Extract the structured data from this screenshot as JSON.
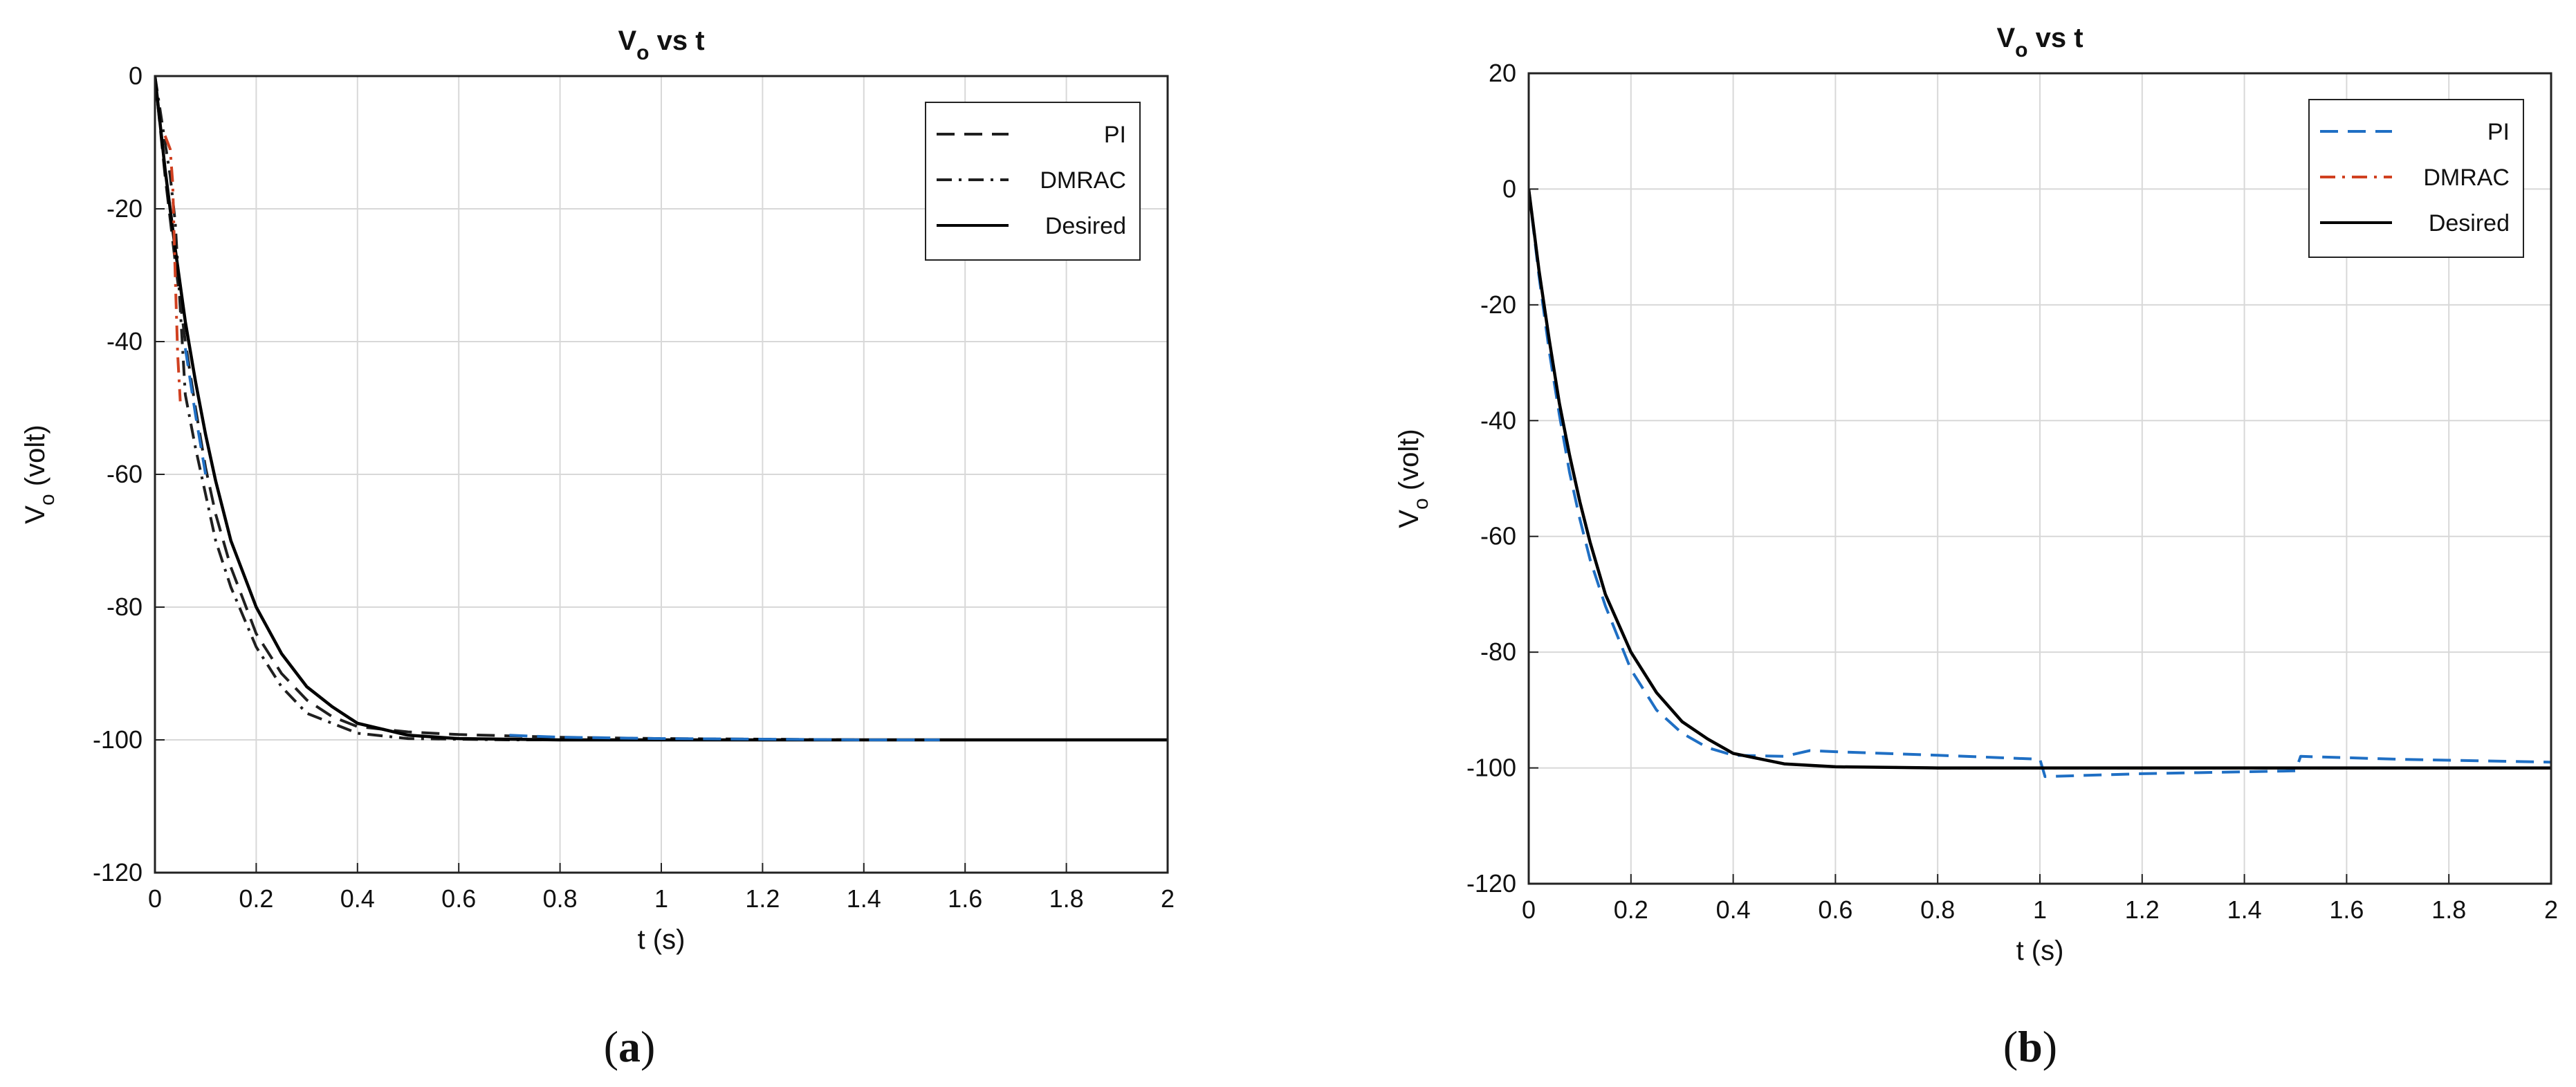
{
  "chart_data": [
    {
      "type": "line",
      "title": "V",
      "title_sub": "o",
      "title_rest": " vs t",
      "ylabel": "V",
      "ylabel_sub": "o",
      "ylabel_rest": " (volt)",
      "xlabel": "t (s)",
      "xlim": [
        0,
        2
      ],
      "ylim": [
        -120,
        0
      ],
      "xticks": [
        "0",
        "0.2",
        "0.4",
        "0.6",
        "0.8",
        "1",
        "1.2",
        "1.4",
        "1.6",
        "1.8",
        "2"
      ],
      "yticks": [
        "0",
        "-20",
        "-40",
        "-60",
        "-80",
        "-100",
        "-120"
      ],
      "grid": true,
      "legend_position": "top-right",
      "caption": "(a)",
      "series": [
        {
          "name": "PI",
          "style": "dashed",
          "color": "#1f1f1f",
          "points": [
            [
              0,
              0
            ],
            [
              0.02,
              -15
            ],
            [
              0.04,
              -28
            ],
            [
              0.06,
              -40
            ],
            [
              0.08,
              -50
            ],
            [
              0.1,
              -59
            ],
            [
              0.12,
              -66
            ],
            [
              0.15,
              -74
            ],
            [
              0.2,
              -84
            ],
            [
              0.25,
              -90
            ],
            [
              0.3,
              -94
            ],
            [
              0.35,
              -96.5
            ],
            [
              0.4,
              -98
            ],
            [
              0.5,
              -98.8
            ],
            [
              0.6,
              -99.2
            ],
            [
              0.8,
              -99.6
            ],
            [
              1.0,
              -99.8
            ],
            [
              1.2,
              -99.9
            ],
            [
              1.4,
              -100
            ],
            [
              2.0,
              -100
            ]
          ]
        },
        {
          "name": "DMRAC",
          "style": "dashdot",
          "color": "#1f1f1f",
          "points": [
            [
              0,
              0
            ],
            [
              0.01,
              -5
            ],
            [
              0.02,
              -10
            ],
            [
              0.03,
              -15
            ],
            [
              0.04,
              -22
            ],
            [
              0.05,
              -35
            ],
            [
              0.06,
              -48
            ],
            [
              0.08,
              -56
            ],
            [
              0.1,
              -63
            ],
            [
              0.12,
              -70
            ],
            [
              0.15,
              -77
            ],
            [
              0.2,
              -86
            ],
            [
              0.25,
              -92
            ],
            [
              0.3,
              -96
            ],
            [
              0.4,
              -99
            ],
            [
              0.5,
              -99.8
            ],
            [
              0.7,
              -100
            ],
            [
              2.0,
              -100
            ]
          ]
        },
        {
          "name": "Desired",
          "style": "solid",
          "color": "#000000",
          "points": [
            [
              0,
              0
            ],
            [
              0.02,
              -14
            ],
            [
              0.04,
              -26
            ],
            [
              0.06,
              -37
            ],
            [
              0.08,
              -46
            ],
            [
              0.1,
              -54
            ],
            [
              0.12,
              -61
            ],
            [
              0.15,
              -70
            ],
            [
              0.2,
              -80
            ],
            [
              0.25,
              -87
            ],
            [
              0.3,
              -92
            ],
            [
              0.35,
              -95
            ],
            [
              0.4,
              -97.5
            ],
            [
              0.5,
              -99.3
            ],
            [
              0.6,
              -99.8
            ],
            [
              0.8,
              -100
            ],
            [
              2.0,
              -100
            ]
          ]
        }
      ],
      "overlays": [
        {
          "color": "#1f6fc4",
          "style": "dashed",
          "points": [
            [
              0.06,
              -41
            ],
            [
              0.08,
              -51
            ],
            [
              0.1,
              -60
            ]
          ]
        },
        {
          "color": "#1f6fc4",
          "style": "dashed",
          "points": [
            [
              0.7,
              -99.3
            ],
            [
              0.8,
              -99.6
            ],
            [
              1.0,
              -99.8
            ],
            [
              1.2,
              -99.9
            ],
            [
              1.4,
              -100
            ],
            [
              1.55,
              -100
            ]
          ]
        },
        {
          "color": "#d04020",
          "style": "dashdot",
          "points": [
            [
              0.02,
              -9
            ],
            [
              0.03,
              -11
            ],
            [
              0.035,
              -16
            ],
            [
              0.04,
              -30
            ],
            [
              0.045,
              -42
            ],
            [
              0.05,
              -49
            ]
          ]
        }
      ]
    },
    {
      "type": "line",
      "title": "V",
      "title_sub": "o",
      "title_rest": " vs t",
      "ylabel": "V",
      "ylabel_sub": "o",
      "ylabel_rest": " (volt)",
      "xlabel": "t (s)",
      "xlim": [
        0,
        2
      ],
      "ylim": [
        -120,
        20
      ],
      "xticks": [
        "0",
        "0.2",
        "0.4",
        "0.6",
        "0.8",
        "1",
        "1.2",
        "1.4",
        "1.6",
        "1.8",
        "2"
      ],
      "yticks": [
        "20",
        "0",
        "-20",
        "-40",
        "-60",
        "-80",
        "-100",
        "-120"
      ],
      "grid": true,
      "legend_position": "top-right",
      "caption": "(b)",
      "series": [
        {
          "name": "PI",
          "style": "dashed",
          "color": "#1f6fc4",
          "points": [
            [
              0,
              0
            ],
            [
              0.02,
              -15
            ],
            [
              0.04,
              -28
            ],
            [
              0.06,
              -39
            ],
            [
              0.08,
              -49
            ],
            [
              0.1,
              -57
            ],
            [
              0.12,
              -64
            ],
            [
              0.15,
              -72
            ],
            [
              0.2,
              -83
            ],
            [
              0.25,
              -90
            ],
            [
              0.3,
              -94
            ],
            [
              0.35,
              -96.5
            ],
            [
              0.4,
              -97.8
            ],
            [
              0.5,
              -98
            ],
            [
              0.55,
              -97
            ],
            [
              0.6,
              -97.2
            ],
            [
              0.8,
              -97.8
            ],
            [
              1.0,
              -98.5
            ],
            [
              1.01,
              -101.5
            ],
            [
              1.2,
              -101
            ],
            [
              1.5,
              -100.5
            ],
            [
              1.51,
              -98
            ],
            [
              1.7,
              -98.5
            ],
            [
              2.0,
              -99
            ]
          ]
        },
        {
          "name": "DMRAC",
          "style": "dashdot",
          "color": "#d04020",
          "points": [
            [
              0,
              0
            ],
            [
              0.02,
              -14
            ],
            [
              0.04,
              -26
            ],
            [
              0.06,
              -37
            ],
            [
              0.08,
              -46
            ],
            [
              0.1,
              -54
            ],
            [
              0.12,
              -61
            ],
            [
              0.15,
              -70
            ],
            [
              0.2,
              -80
            ],
            [
              0.25,
              -87
            ],
            [
              0.3,
              -92
            ],
            [
              0.35,
              -95
            ],
            [
              0.4,
              -97.5
            ],
            [
              0.5,
              -99.3
            ],
            [
              0.6,
              -99.8
            ],
            [
              0.8,
              -100
            ],
            [
              2.0,
              -100
            ]
          ]
        },
        {
          "name": "Desired",
          "style": "solid",
          "color": "#000000",
          "points": [
            [
              0,
              0
            ],
            [
              0.02,
              -14
            ],
            [
              0.04,
              -26
            ],
            [
              0.06,
              -37
            ],
            [
              0.08,
              -46
            ],
            [
              0.1,
              -54
            ],
            [
              0.12,
              -61
            ],
            [
              0.15,
              -70
            ],
            [
              0.2,
              -80
            ],
            [
              0.25,
              -87
            ],
            [
              0.3,
              -92
            ],
            [
              0.35,
              -95
            ],
            [
              0.4,
              -97.5
            ],
            [
              0.5,
              -99.3
            ],
            [
              0.6,
              -99.8
            ],
            [
              0.8,
              -100
            ],
            [
              2.0,
              -100
            ]
          ]
        }
      ],
      "overlays": []
    }
  ]
}
